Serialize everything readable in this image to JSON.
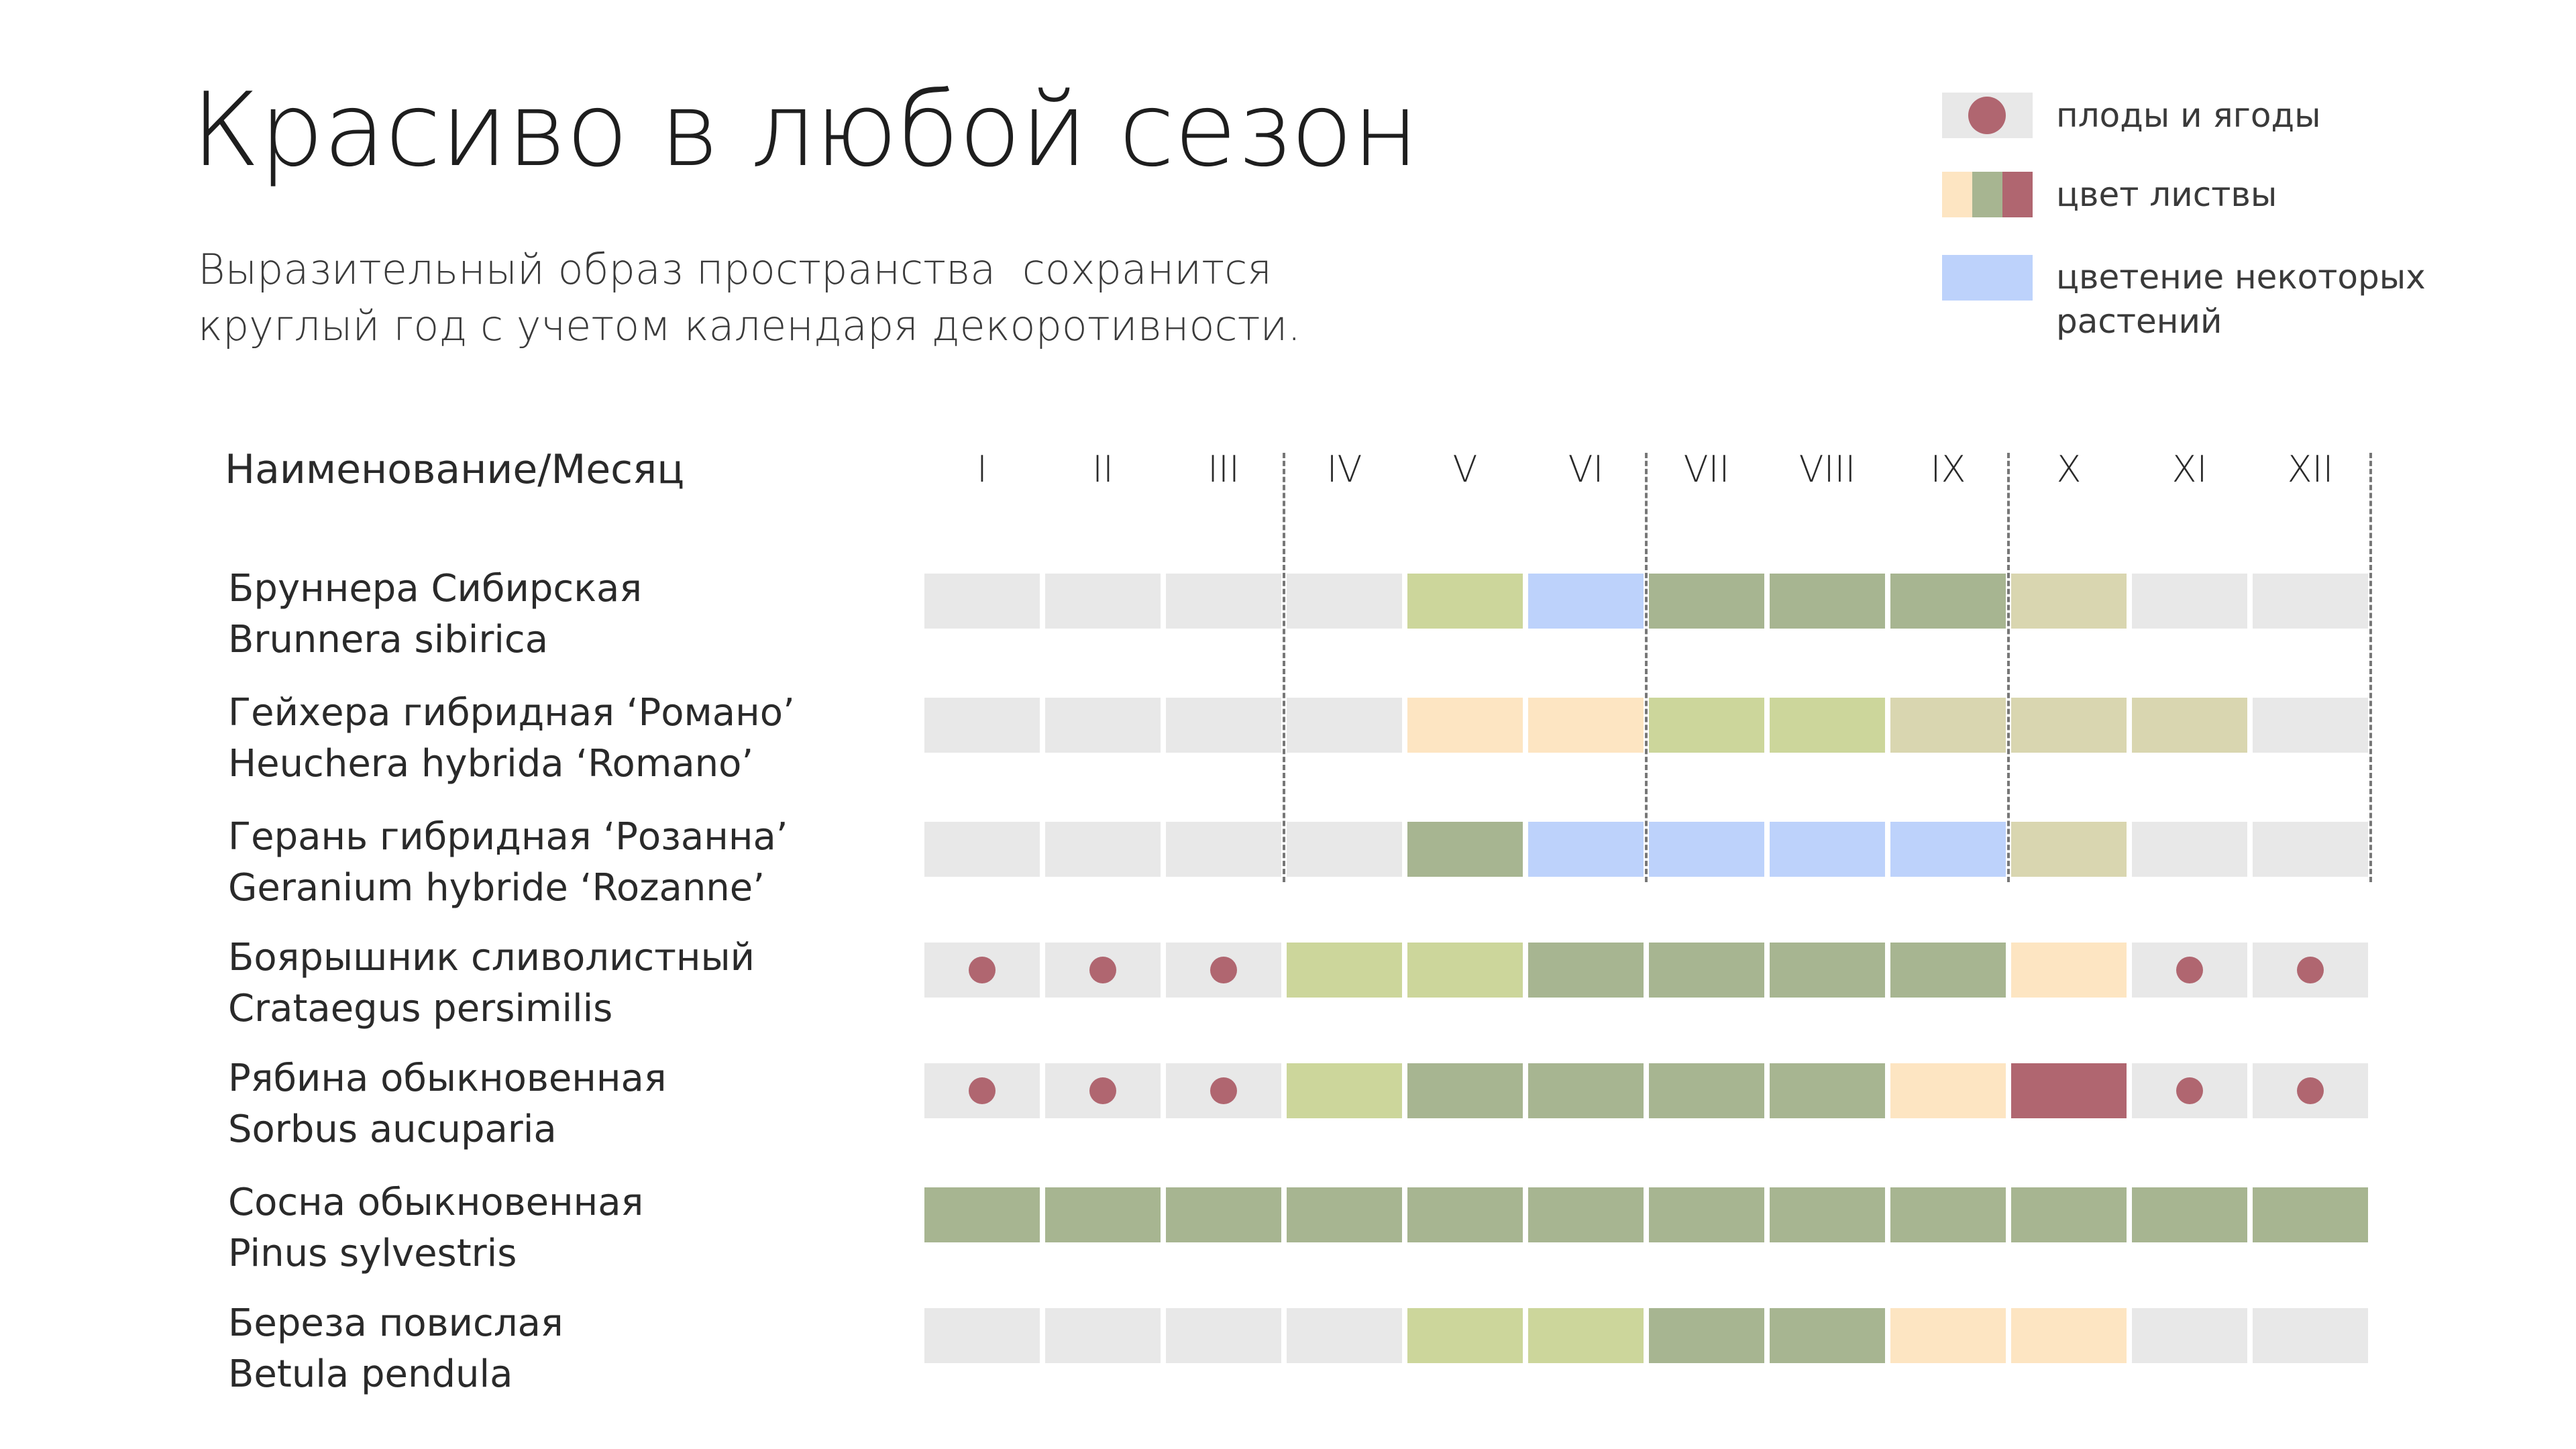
{
  "title": "Красиво в любой сезон",
  "subtitle": [
    "Выразительный образ пространства  сохранится",
    "круглый год с учетом календаря декоротивности."
  ],
  "colors": {
    "empty": "#e8e8e8",
    "light_green": "#ccd69b",
    "green": "#a7b591",
    "blue": "#bdd2fb",
    "peach": "#fde5c2",
    "khaki": "#d9d6b0",
    "red": "#b06670",
    "fruit_dot": "#b06670"
  },
  "legend": [
    {
      "type": "fruit",
      "label": "плоды и ягоды"
    },
    {
      "type": "foliage",
      "label": "цвет листвы"
    },
    {
      "type": "bloom",
      "label": "цветение некоторых растений"
    }
  ],
  "chart_data": {
    "type": "table",
    "header": "Наименование/Месяц",
    "months": [
      "I",
      "II",
      "III",
      "IV",
      "V",
      "VI",
      "VII",
      "VIII",
      "IX",
      "X",
      "XI",
      "XII"
    ],
    "rows": [
      {
        "name": "Бруннера Сибирская",
        "latin": "Brunnera sibirica",
        "cells": [
          "empty",
          "empty",
          "empty",
          "empty",
          "light_green",
          "blue",
          "green",
          "green",
          "green",
          "khaki",
          "empty",
          "empty"
        ],
        "fruit": []
      },
      {
        "name": "Гейхера гибридная ‘Романо’",
        "latin": "Heuchera hybrida ‘Romano’",
        "cells": [
          "empty",
          "empty",
          "empty",
          "empty",
          "peach",
          "peach",
          "light_green",
          "light_green",
          "khaki",
          "khaki",
          "khaki",
          "empty"
        ],
        "fruit": []
      },
      {
        "name": "Герань гибридная ‘Розанна’",
        "latin": "Geranium hybride ‘Rozanne’",
        "cells": [
          "empty",
          "empty",
          "empty",
          "empty",
          "green",
          "blue",
          "blue",
          "blue",
          "blue",
          "khaki",
          "empty",
          "empty"
        ],
        "fruit": []
      },
      {
        "name": "Боярышник сливолистный",
        "latin": "Crataegus persimilis",
        "cells": [
          "empty",
          "empty",
          "empty",
          "light_green",
          "light_green",
          "green",
          "green",
          "green",
          "green",
          "peach",
          "empty",
          "empty"
        ],
        "fruit": [
          "I",
          "II",
          "III",
          "XI",
          "XII"
        ]
      },
      {
        "name": "Рябина обыкновенная",
        "latin": "Sorbus aucuparia",
        "cells": [
          "empty",
          "empty",
          "empty",
          "light_green",
          "green",
          "green",
          "green",
          "green",
          "peach",
          "red",
          "empty",
          "empty"
        ],
        "fruit": [
          "I",
          "II",
          "III",
          "XI",
          "XII"
        ]
      },
      {
        "name": "Сосна обыкновенная",
        "latin": "Pinus sylvestris",
        "cells": [
          "green",
          "green",
          "green",
          "green",
          "green",
          "green",
          "green",
          "green",
          "green",
          "green",
          "green",
          "green"
        ],
        "fruit": []
      },
      {
        "name": "Береза повислая",
        "latin": "Betula pendula",
        "cells": [
          "empty",
          "empty",
          "empty",
          "empty",
          "light_green",
          "light_green",
          "green",
          "green",
          "peach",
          "peach",
          "empty",
          "empty"
        ],
        "fruit": []
      }
    ]
  }
}
